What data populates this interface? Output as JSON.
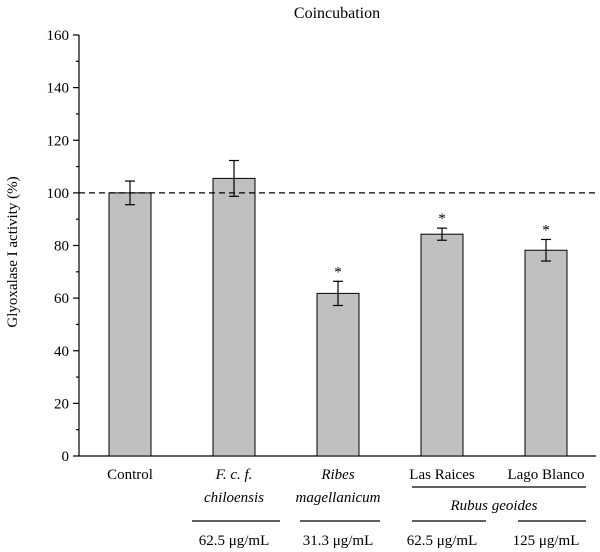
{
  "chart_data": {
    "type": "bar",
    "title": "Coincubation",
    "ylabel": "Glyoxalase I activity (%)",
    "xlabel": "",
    "ylim": [
      0,
      160
    ],
    "yticks": [
      "0",
      "20",
      "40",
      "60",
      "80",
      "100",
      "120",
      "140",
      "160"
    ],
    "reference_line": 100,
    "categories": [
      {
        "line1": "Control",
        "line1_italic": false,
        "line2": ""
      },
      {
        "line1": "F. c. f.",
        "line1_italic": true,
        "line2": "chiloensis"
      },
      {
        "line1": "Ribes",
        "line1_italic": true,
        "line2": "magellanicum"
      },
      {
        "line1": "Las Raices",
        "line1_italic": false,
        "line2": ""
      },
      {
        "line1": "Lago Blanco",
        "line1_italic": false,
        "line2": ""
      }
    ],
    "values": [
      100,
      105.5,
      61.8,
      84.3,
      78.2
    ],
    "errors": [
      4.5,
      6.8,
      4.6,
      2.3,
      4.1
    ],
    "significance": [
      "",
      "",
      "*",
      "*",
      "*"
    ],
    "group_label": "Rubus geoides",
    "concentrations": [
      "",
      "62.5 μg/mL",
      "31.3 μg/mL",
      "62.5 μg/mL",
      "125 μg/mL"
    ],
    "bar_color": "#c0c0c0"
  }
}
